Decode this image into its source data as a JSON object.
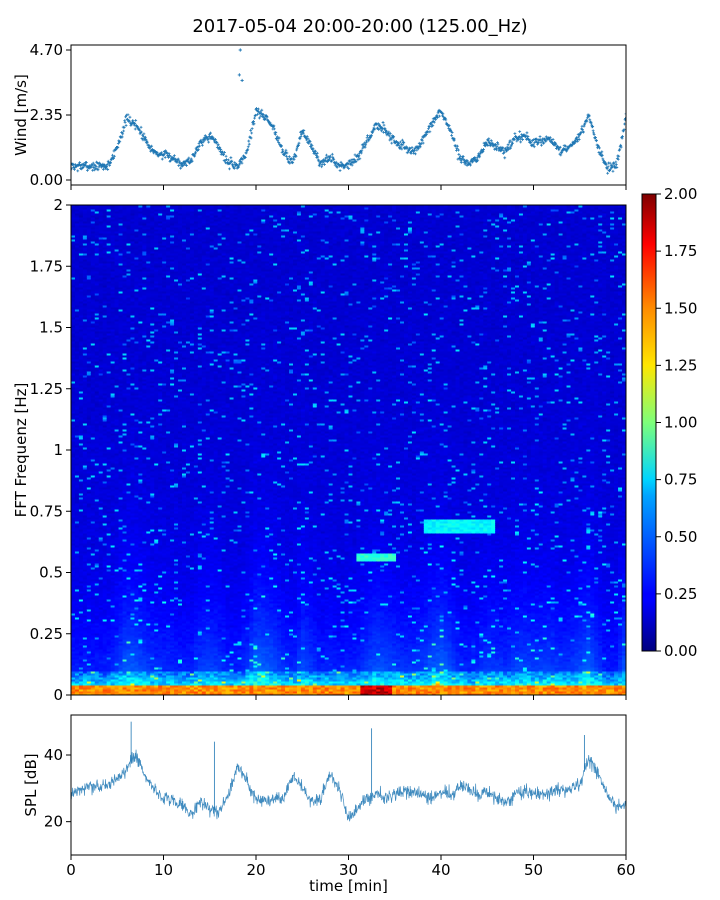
{
  "figure": {
    "title": "2017-05-04 20:00-20:00 (125.00_Hz)",
    "xlabel": "time [min]"
  },
  "colors": {
    "wind_series": "#1f77b4",
    "spl_series": "#1f77b4",
    "spectrogram_colormap": "jet"
  },
  "chart_data": [
    {
      "type": "scatter",
      "name": "wind",
      "ylabel": "Wind [m/s]",
      "x_range": [
        0,
        60
      ],
      "ylim": [
        0.0,
        4.7
      ],
      "y_ticks": [
        "0.00",
        "2.35",
        "4.70"
      ],
      "marker": "+",
      "series_profile": {
        "x": [
          0,
          2,
          4,
          5,
          6,
          7,
          8,
          9,
          10,
          11,
          12,
          13,
          14,
          15,
          16,
          17,
          18,
          19,
          20,
          21,
          22,
          23,
          24,
          25,
          26,
          27,
          28,
          29,
          30,
          31,
          32,
          33,
          34,
          35,
          36,
          37,
          38,
          39,
          40,
          41,
          42,
          43,
          44,
          45,
          46,
          47,
          48,
          49,
          50,
          51,
          52,
          53,
          54,
          55,
          56,
          57,
          58,
          59,
          60
        ],
        "y": [
          0.5,
          0.5,
          0.5,
          1.2,
          2.2,
          2.0,
          1.5,
          1.0,
          0.9,
          0.8,
          0.6,
          0.7,
          1.4,
          1.6,
          1.2,
          0.6,
          0.5,
          1.0,
          2.5,
          2.3,
          1.8,
          1.0,
          0.6,
          1.8,
          1.2,
          0.6,
          0.8,
          0.5,
          0.6,
          0.8,
          1.4,
          2.0,
          1.8,
          1.4,
          1.2,
          1.0,
          1.4,
          2.0,
          2.5,
          1.8,
          0.8,
          0.6,
          0.8,
          1.4,
          1.2,
          1.0,
          1.5,
          1.6,
          1.3,
          1.5,
          1.4,
          1.0,
          1.2,
          1.6,
          2.3,
          1.2,
          0.4,
          0.5,
          2.3
        ]
      },
      "peak_points": [
        {
          "x": 18.3,
          "y": 4.7
        },
        {
          "x": 18.2,
          "y": 3.8
        },
        {
          "x": 18.5,
          "y": 3.6
        }
      ]
    },
    {
      "type": "heatmap",
      "name": "spectrogram",
      "ylabel": "FFT Frequenz [Hz]",
      "x_range": [
        0,
        60
      ],
      "ylim": [
        0,
        2
      ],
      "y_ticks": [
        "0",
        "0.25",
        "0.5",
        "0.75",
        "1",
        "1.25",
        "1.5",
        "1.75",
        "2"
      ],
      "colorbar": {
        "range": [
          0.0,
          2.0
        ],
        "ticks": [
          "0.00",
          "0.25",
          "0.50",
          "0.75",
          "1.00",
          "1.25",
          "1.50",
          "1.75",
          "2.00"
        ]
      },
      "features": [
        {
          "desc": "high energy band",
          "freq": [
            0.0,
            0.04
          ],
          "time": [
            0,
            60
          ],
          "level": 1.6
        },
        {
          "desc": "saturated block",
          "freq": [
            0.0,
            0.04
          ],
          "time": [
            31.5,
            34.5
          ],
          "level": 2.0
        },
        {
          "desc": "tonal line",
          "freq": [
            0.55,
            0.58
          ],
          "time": [
            31,
            35
          ],
          "level": 0.9
        },
        {
          "desc": "tonal line",
          "freq": [
            0.66,
            0.72
          ],
          "time": [
            38,
            46
          ],
          "level": 0.8
        }
      ]
    },
    {
      "type": "line",
      "name": "spl",
      "ylabel": "SPL [dB]",
      "xlim": [
        0,
        60
      ],
      "ylim": [
        10,
        52
      ],
      "x_ticks": [
        "0",
        "10",
        "20",
        "30",
        "40",
        "50",
        "60"
      ],
      "y_ticks": [
        "20",
        "40"
      ],
      "series_profile": {
        "x": [
          0,
          2,
          4,
          5,
          6,
          7,
          8,
          9,
          10,
          11,
          12,
          13,
          14,
          15,
          16,
          17,
          18,
          19,
          20,
          21,
          22,
          23,
          24,
          25,
          26,
          27,
          28,
          29,
          30,
          31,
          32,
          33,
          34,
          35,
          36,
          37,
          38,
          39,
          40,
          41,
          42,
          43,
          44,
          45,
          46,
          47,
          48,
          49,
          50,
          51,
          52,
          53,
          54,
          55,
          56,
          57,
          58,
          59,
          60
        ],
        "y": [
          28,
          31,
          31,
          33,
          36,
          40,
          34,
          30,
          27,
          26,
          25,
          22,
          26,
          24,
          23,
          28,
          37,
          32,
          27,
          26,
          27,
          27,
          34,
          30,
          26,
          27,
          34,
          30,
          21,
          24,
          27,
          28,
          27,
          28,
          29,
          29,
          28,
          27,
          29,
          28,
          31,
          30,
          28,
          29,
          27,
          26,
          28,
          29,
          29,
          28,
          29,
          29,
          30,
          31,
          39,
          34,
          29,
          24,
          26
        ]
      },
      "band_halfwidth": 4,
      "spikes": [
        {
          "x": 6.5,
          "y": 50
        },
        {
          "x": 32.5,
          "y": 48
        },
        {
          "x": 55.5,
          "y": 46
        },
        {
          "x": 15.5,
          "y": 44
        }
      ]
    }
  ]
}
